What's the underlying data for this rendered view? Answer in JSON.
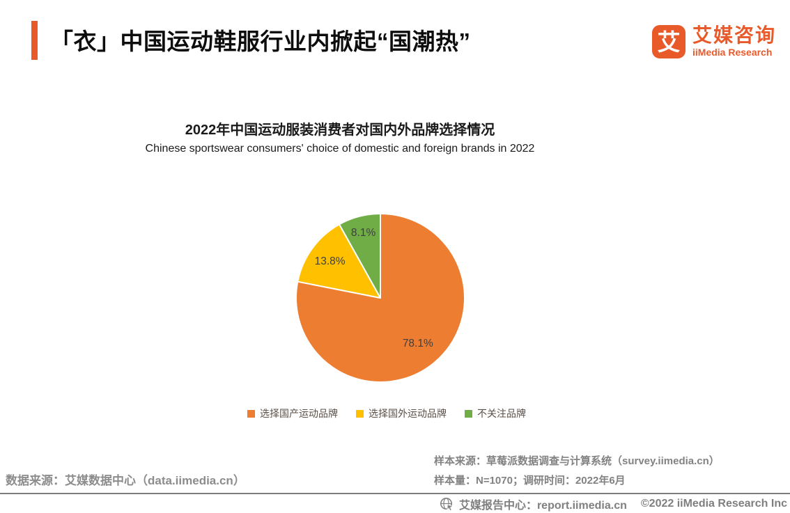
{
  "header": {
    "title": "「衣」中国运动鞋服行业内掀起“国潮热”"
  },
  "brand": {
    "logo_glyph": "艾",
    "logo_icon": "iimedia-logo",
    "name_cn": "艾媒咨询",
    "name_en": "iiMedia Research",
    "brand_color": "#E95A2B"
  },
  "chart_data": {
    "type": "pie",
    "title": "2022年中国运动服装消费者对国内外品牌选择情况",
    "subtitle": "Chinese sportswear consumers' choice of domestic and foreign brands in 2022",
    "unit": "percent",
    "direction": "clockwise",
    "start_angle_deg": 0,
    "legend_position": "bottom",
    "slices": [
      {
        "label": "选择国产运动品牌",
        "value": 78.1,
        "data_label": "78.1%",
        "color": "#ED7D31"
      },
      {
        "label": "选择国外运动品牌",
        "value": 13.8,
        "data_label": "13.8%",
        "color": "#FFC000"
      },
      {
        "label": "不关注品牌",
        "value": 8.1,
        "data_label": "8.1%",
        "color": "#70AD47"
      }
    ],
    "label_radius": [
      0.7,
      0.74,
      0.8
    ],
    "label_color": "#3f3f3f",
    "slice_border_color": "#ffffff"
  },
  "footnotes": {
    "sample_source": "样本来源：草莓派数据调查与计算系统（survey.iimedia.cn）",
    "sample_info": "样本量：N=1070；调研时间：2022年6月",
    "data_source": "数据来源：艾媒数据中心（data.iimedia.cn）"
  },
  "footer": {
    "icon": "globe-cursor-icon",
    "text": "艾媒报告中心：report.iimedia.cn",
    "copyright": "©2022  iiMedia Research  Inc"
  }
}
